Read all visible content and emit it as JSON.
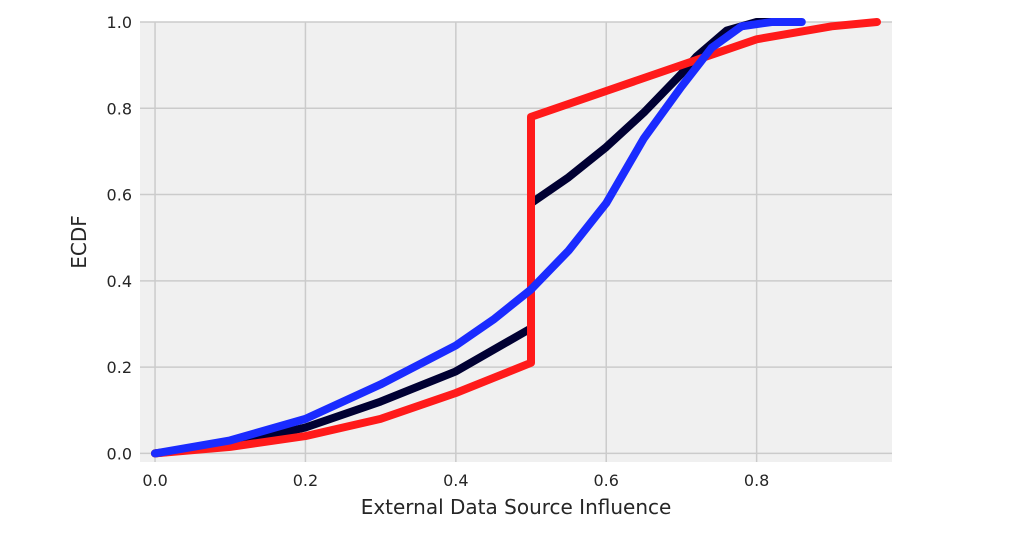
{
  "chart_data": {
    "type": "line",
    "title": "",
    "xlabel": "External Data Source Influence",
    "ylabel": "ECDF",
    "xlim": [
      -0.02,
      0.98
    ],
    "ylim": [
      -0.02,
      1.0
    ],
    "xticks": [
      0.0,
      0.2,
      0.4,
      0.6,
      0.8
    ],
    "yticks": [
      0.0,
      0.2,
      0.4,
      0.6,
      0.8,
      1.0
    ],
    "xtick_labels": [
      "0.0",
      "0.2",
      "0.4",
      "0.6",
      "0.8"
    ],
    "ytick_labels": [
      "0.0",
      "0.2",
      "0.4",
      "0.6",
      "0.8",
      "1.0"
    ],
    "grid": true,
    "legend": "none",
    "background_color": "#f0f0f0",
    "grid_color": "#cbcbcb",
    "series": [
      {
        "color": "#000033",
        "points": [
          [
            0.0,
            0.0
          ],
          [
            0.1,
            0.02
          ],
          [
            0.2,
            0.06
          ],
          [
            0.3,
            0.12
          ],
          [
            0.4,
            0.19
          ],
          [
            0.5,
            0.29
          ],
          [
            0.5,
            0.58
          ],
          [
            0.55,
            0.64
          ],
          [
            0.6,
            0.71
          ],
          [
            0.65,
            0.79
          ],
          [
            0.7,
            0.88
          ],
          [
            0.72,
            0.92
          ],
          [
            0.76,
            0.98
          ],
          [
            0.8,
            1.0
          ],
          [
            0.85,
            1.0
          ]
        ]
      },
      {
        "color": "#ff1a1a",
        "points": [
          [
            0.0,
            0.0
          ],
          [
            0.1,
            0.015
          ],
          [
            0.2,
            0.04
          ],
          [
            0.3,
            0.08
          ],
          [
            0.4,
            0.14
          ],
          [
            0.5,
            0.21
          ],
          [
            0.5,
            0.78
          ],
          [
            0.6,
            0.84
          ],
          [
            0.7,
            0.9
          ],
          [
            0.8,
            0.96
          ],
          [
            0.9,
            0.99
          ],
          [
            0.96,
            1.0
          ]
        ]
      },
      {
        "color": "#1a2bff",
        "points": [
          [
            0.0,
            0.0
          ],
          [
            0.1,
            0.03
          ],
          [
            0.2,
            0.08
          ],
          [
            0.3,
            0.16
          ],
          [
            0.4,
            0.25
          ],
          [
            0.45,
            0.31
          ],
          [
            0.5,
            0.38
          ],
          [
            0.55,
            0.47
          ],
          [
            0.6,
            0.58
          ],
          [
            0.65,
            0.73
          ],
          [
            0.7,
            0.85
          ],
          [
            0.74,
            0.94
          ],
          [
            0.78,
            0.99
          ],
          [
            0.82,
            1.0
          ],
          [
            0.86,
            1.0
          ]
        ]
      }
    ]
  }
}
